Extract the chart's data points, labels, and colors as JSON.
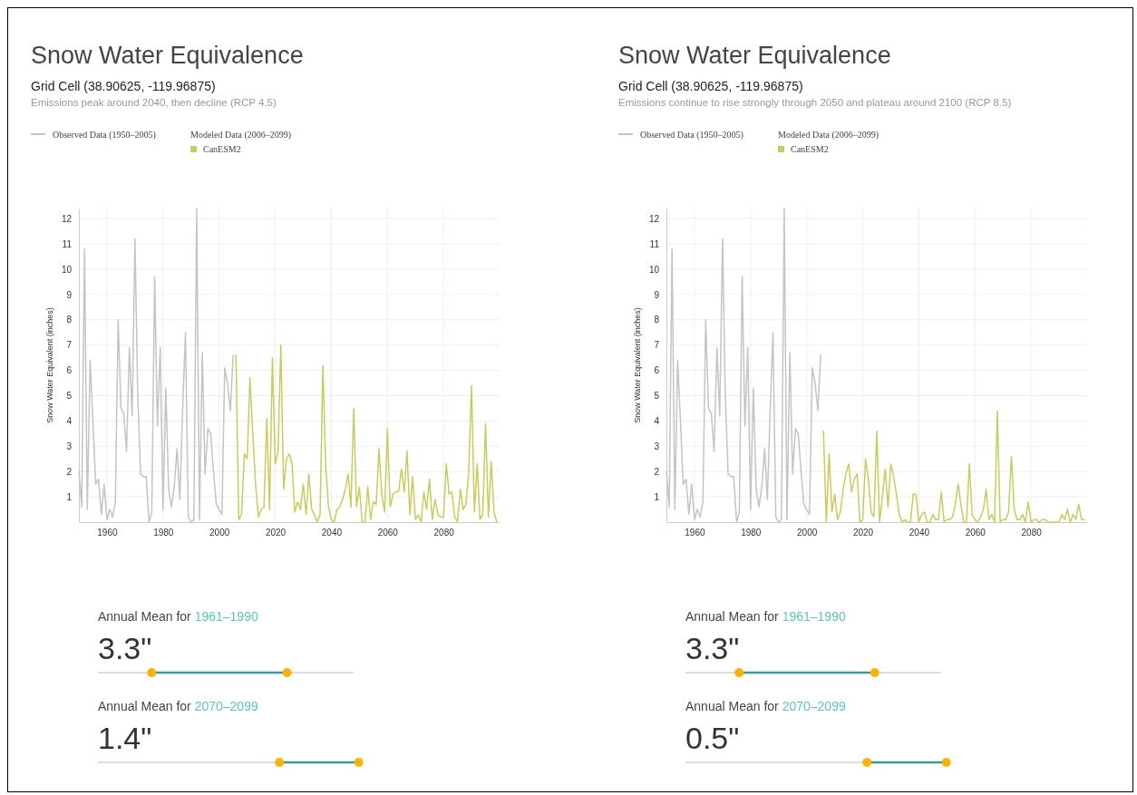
{
  "chart_data": [
    {
      "type": "line",
      "title": "Snow Water Equivalence",
      "subtitle": "Grid Cell (38.90625, -119.96875)",
      "ylabel": "Snow Water Equivalent (inches)",
      "legend_title": "Modeled Data (2006–2099)",
      "legend": "top left",
      "grid": true,
      "marker": "none",
      "line_style": "solid",
      "annotations": [
        "Emissions peak around 2040, then decline (RCP 4.5)",
        "Annual Mean for ",
        "1961–1990",
        "3.3\"",
        "Annual Mean for ",
        "2070–2099",
        "1.4\""
      ],
      "xlim": [
        1950,
        2100
      ],
      "xticks": [
        1960,
        1980,
        2000,
        2020,
        2040,
        2060,
        2080
      ],
      "ylim": [
        0,
        12.4
      ],
      "yticks": [
        1,
        2,
        3,
        4,
        5,
        6,
        7,
        8,
        9,
        10,
        11,
        12
      ],
      "series": [
        {
          "name": "Observed Data (1950–2005)",
          "color": "#c4c4c4",
          "x": [
            1950,
            1951,
            1952,
            1953,
            1954,
            1955,
            1956,
            1957,
            1958,
            1959,
            1960,
            1961,
            1962,
            1963,
            1964,
            1965,
            1966,
            1967,
            1968,
            1969,
            1970,
            1971,
            1972,
            1973,
            1974,
            1975,
            1976,
            1977,
            1978,
            1979,
            1980,
            1981,
            1982,
            1983,
            1984,
            1985,
            1986,
            1987,
            1988,
            1989,
            1990,
            1991,
            1992,
            1993,
            1994,
            1995,
            1996,
            1997,
            1998,
            1999,
            2000,
            2001,
            2002,
            2003,
            2004,
            2005
          ],
          "values": [
            2.0,
            0.6,
            10.8,
            0.5,
            6.4,
            4.0,
            1.5,
            1.7,
            0.3,
            1.5,
            0.1,
            0.5,
            0.2,
            0.8,
            8.0,
            4.5,
            4.3,
            2.8,
            6.9,
            4.2,
            11.2,
            5.0,
            1.9,
            1.8,
            1.8,
            0.0,
            0.4,
            9.7,
            3.8,
            6.9,
            0.5,
            5.3,
            1.3,
            0.6,
            1.4,
            2.9,
            0.9,
            4.5,
            7.5,
            0.2,
            0.0,
            0.1,
            12.4,
            0.1,
            6.7,
            1.9,
            3.7,
            3.5,
            2.0,
            0.7,
            0.5,
            0.3,
            6.1,
            5.5,
            4.4,
            6.6
          ]
        },
        {
          "name": "CanESM2",
          "color": "#c8cc5c",
          "x": [
            2006,
            2007,
            2008,
            2009,
            2010,
            2011,
            2012,
            2013,
            2014,
            2015,
            2016,
            2017,
            2018,
            2019,
            2020,
            2021,
            2022,
            2023,
            2024,
            2025,
            2026,
            2027,
            2028,
            2029,
            2030,
            2031,
            2032,
            2033,
            2034,
            2035,
            2036,
            2037,
            2038,
            2039,
            2040,
            2041,
            2042,
            2043,
            2044,
            2045,
            2046,
            2047,
            2048,
            2049,
            2050,
            2051,
            2052,
            2053,
            2054,
            2055,
            2056,
            2057,
            2058,
            2059,
            2060,
            2061,
            2062,
            2063,
            2064,
            2065,
            2066,
            2067,
            2068,
            2069,
            2070,
            2071,
            2072,
            2073,
            2074,
            2075,
            2076,
            2077,
            2078,
            2079,
            2080,
            2081,
            2082,
            2083,
            2084,
            2085,
            2086,
            2087,
            2088,
            2089,
            2090,
            2091,
            2092,
            2093,
            2094,
            2095,
            2096,
            2097,
            2098,
            2099
          ],
          "values": [
            6.6,
            0.1,
            0.3,
            2.7,
            2.5,
            5.7,
            3.5,
            1.5,
            0.2,
            0.5,
            0.6,
            4.1,
            0.5,
            6.5,
            2.3,
            2.8,
            7.0,
            1.3,
            2.5,
            2.7,
            2.3,
            0.4,
            0.8,
            0.5,
            1.5,
            0.3,
            1.9,
            0.5,
            0.3,
            0.0,
            0.3,
            6.2,
            2.2,
            0.6,
            0.1,
            0.0,
            0.5,
            0.6,
            0.9,
            1.3,
            1.9,
            0.6,
            4.5,
            0.6,
            1.4,
            0.0,
            0.0,
            1.4,
            0.1,
            0.8,
            0.7,
            2.9,
            1.1,
            0.4,
            3.7,
            0.6,
            1.1,
            1.2,
            1.2,
            2.1,
            1.2,
            2.8,
            0.3,
            1.8,
            0.1,
            0.3,
            0.0,
            1.2,
            0.5,
            1.7,
            0.1,
            0.9,
            0.3,
            0.2,
            0.2,
            2.3,
            1.1,
            1.2,
            0.2,
            0.0,
            1.3,
            0.5,
            0.7,
            2.0,
            5.4,
            0.4,
            2.3,
            0.1,
            0.3,
            3.9,
            0.2,
            2.4,
            0.4,
            0.0
          ]
        }
      ]
    },
    {
      "type": "line",
      "title": "Snow Water Equivalence",
      "subtitle": "Grid Cell (38.90625, -119.96875)",
      "ylabel": "Snow Water Equivalent (inches)",
      "legend_title": "Modeled Data (2006–2099)",
      "legend": "top left",
      "grid": true,
      "marker": "none",
      "line_style": "solid",
      "annotations": [
        "Emissions continue to rise strongly through 2050 and plateau around 2100 (RCP 8.5)",
        "Annual Mean for ",
        "1961–1990",
        "3.3\"",
        "Annual Mean for ",
        "2070–2099",
        "0.5\""
      ],
      "xlim": [
        1950,
        2100
      ],
      "xticks": [
        1960,
        1980,
        2000,
        2020,
        2040,
        2060,
        2080
      ],
      "ylim": [
        0,
        12.4
      ],
      "yticks": [
        1,
        2,
        3,
        4,
        5,
        6,
        7,
        8,
        9,
        10,
        11,
        12
      ],
      "series": [
        {
          "name": "Observed Data (1950–2005)",
          "color": "#c4c4c4",
          "x": [
            1950,
            1951,
            1952,
            1953,
            1954,
            1955,
            1956,
            1957,
            1958,
            1959,
            1960,
            1961,
            1962,
            1963,
            1964,
            1965,
            1966,
            1967,
            1968,
            1969,
            1970,
            1971,
            1972,
            1973,
            1974,
            1975,
            1976,
            1977,
            1978,
            1979,
            1980,
            1981,
            1982,
            1983,
            1984,
            1985,
            1986,
            1987,
            1988,
            1989,
            1990,
            1991,
            1992,
            1993,
            1994,
            1995,
            1996,
            1997,
            1998,
            1999,
            2000,
            2001,
            2002,
            2003,
            2004,
            2005
          ],
          "values": [
            2.0,
            0.6,
            10.8,
            0.5,
            6.4,
            4.0,
            1.5,
            1.7,
            0.3,
            1.5,
            0.1,
            0.5,
            0.2,
            0.8,
            8.0,
            4.5,
            4.3,
            2.8,
            6.9,
            4.2,
            11.2,
            5.0,
            1.9,
            1.8,
            1.8,
            0.0,
            0.4,
            9.7,
            3.8,
            6.9,
            0.5,
            5.3,
            1.3,
            0.6,
            1.4,
            2.9,
            0.9,
            4.5,
            7.5,
            0.2,
            0.0,
            0.1,
            12.4,
            0.1,
            6.7,
            1.9,
            3.7,
            3.5,
            2.0,
            0.7,
            0.5,
            0.3,
            6.1,
            5.5,
            4.4,
            6.6
          ]
        },
        {
          "name": "CanESM2",
          "color": "#c8cc5c",
          "x": [
            2006,
            2007,
            2008,
            2009,
            2010,
            2011,
            2012,
            2013,
            2014,
            2015,
            2016,
            2017,
            2018,
            2019,
            2020,
            2021,
            2022,
            2023,
            2024,
            2025,
            2026,
            2027,
            2028,
            2029,
            2030,
            2031,
            2032,
            2033,
            2034,
            2035,
            2036,
            2037,
            2038,
            2039,
            2040,
            2041,
            2042,
            2043,
            2044,
            2045,
            2046,
            2047,
            2048,
            2049,
            2050,
            2051,
            2052,
            2053,
            2054,
            2055,
            2056,
            2057,
            2058,
            2059,
            2060,
            2061,
            2062,
            2063,
            2064,
            2065,
            2066,
            2067,
            2068,
            2069,
            2070,
            2071,
            2072,
            2073,
            2074,
            2075,
            2076,
            2077,
            2078,
            2079,
            2080,
            2081,
            2082,
            2083,
            2084,
            2085,
            2086,
            2087,
            2088,
            2089,
            2090,
            2091,
            2092,
            2093,
            2094,
            2095,
            2096,
            2097,
            2098,
            2099
          ],
          "values": [
            3.6,
            0.0,
            2.7,
            0.4,
            1.1,
            0.1,
            0.4,
            1.3,
            1.9,
            2.3,
            1.2,
            1.7,
            1.9,
            0.0,
            0.1,
            2.5,
            1.7,
            0.4,
            0.2,
            3.6,
            0.0,
            1.0,
            2.1,
            0.6,
            2.3,
            1.8,
            1.1,
            0.3,
            0.0,
            0.1,
            0.0,
            0.0,
            1.1,
            1.1,
            0.0,
            0.3,
            0.4,
            0.0,
            0.0,
            0.3,
            0.1,
            0.1,
            1.2,
            0.0,
            0.1,
            0.1,
            0.2,
            0.7,
            1.5,
            0.7,
            0.0,
            0.0,
            2.3,
            0.3,
            0.1,
            0.0,
            0.2,
            0.5,
            1.3,
            0.1,
            0.3,
            0.0,
            4.4,
            0.0,
            0.1,
            0.1,
            0.4,
            2.6,
            0.5,
            0.1,
            0.1,
            0.3,
            0.0,
            0.8,
            0.0,
            0.1,
            0.1,
            0.0,
            0.1,
            0.1,
            0.0,
            0.0,
            0.0,
            0.0,
            0.0,
            0.3,
            0.1,
            0.5,
            0.0,
            0.3,
            0.1,
            0.7,
            0.1,
            0.1
          ]
        }
      ]
    }
  ]
}
